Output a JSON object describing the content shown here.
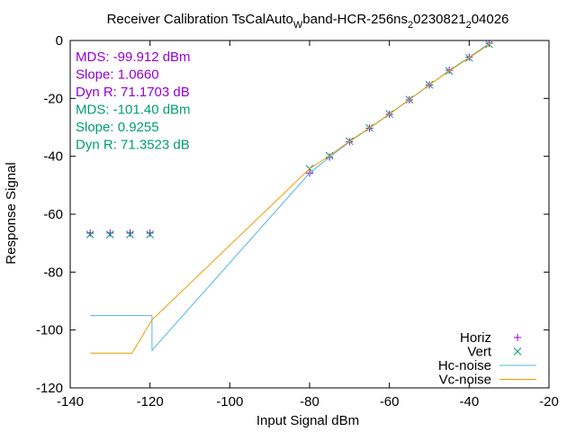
{
  "chart_data": {
    "type": "scatter",
    "title": {
      "parts": [
        {
          "text": "Receiver Calibration TsCalAuto",
          "sub": false
        },
        {
          "text": "W",
          "sub": true
        },
        {
          "text": "band-HCR-256ns",
          "sub": false
        },
        {
          "text": "2",
          "sub": true
        },
        {
          "text": "0230821",
          "sub": false
        },
        {
          "text": "2",
          "sub": true
        },
        {
          "text": "04026",
          "sub": false
        }
      ]
    },
    "xlabel": "Input Signal dBm",
    "ylabel": "Response Signal",
    "xlim": [
      -140,
      -20
    ],
    "ylim": [
      -120,
      0
    ],
    "x_ticks": [
      -140,
      -120,
      -100,
      -80,
      -60,
      -40,
      -20
    ],
    "y_ticks": [
      -120,
      -100,
      -80,
      -60,
      -40,
      -20,
      0
    ],
    "grid": false,
    "legend_position": "bottom-right",
    "annotations": [
      {
        "text": "MDS: -99.912 dBm",
        "color": "#9400d3"
      },
      {
        "text": "Slope: 1.0660",
        "color": "#9400d3"
      },
      {
        "text": "Dyn R: 71.1703 dB",
        "color": "#9400d3"
      },
      {
        "text": "MDS: -101.40 dBm",
        "color": "#009e73"
      },
      {
        "text": "Slope: 0.9255",
        "color": "#009e73"
      },
      {
        "text": "Dyn R: 71.3523 dB",
        "color": "#009e73"
      }
    ],
    "series": [
      {
        "name": "Horiz",
        "kind": "points",
        "marker": "plus",
        "color": "#9400d3",
        "x": [
          -135,
          -130,
          -125,
          -120,
          -80,
          -75,
          -70,
          -65,
          -60,
          -55,
          -50,
          -45,
          -40,
          -35
        ],
        "y": [
          -66.5,
          -66.5,
          -66.5,
          -66.5,
          -45.8,
          -40.3,
          -35.0,
          -30.3,
          -25.5,
          -20.5,
          -15.4,
          -10.3,
          -5.8,
          -1.0
        ]
      },
      {
        "name": "Vert",
        "kind": "points",
        "marker": "cross",
        "color": "#009e73",
        "x": [
          -135,
          -130,
          -125,
          -120,
          -80,
          -75,
          -70,
          -65,
          -60,
          -55,
          -50,
          -45,
          -40,
          -35
        ],
        "y": [
          -67.0,
          -67.0,
          -67.0,
          -67.0,
          -44.3,
          -39.8,
          -34.8,
          -30.2,
          -25.4,
          -20.4,
          -15.3,
          -10.5,
          -6.0,
          -1.3
        ]
      },
      {
        "name": "Hc-noise",
        "kind": "line",
        "color": "#56b4e9",
        "x": [
          -135,
          -119.5,
          -119.5,
          -80,
          -75,
          -70,
          -65,
          -60,
          -55,
          -50,
          -45,
          -40,
          -35,
          -34
        ],
        "y": [
          -95.0,
          -95.0,
          -107.0,
          -45.8,
          -40.3,
          -35.0,
          -30.3,
          -25.5,
          -20.5,
          -15.4,
          -10.3,
          -5.8,
          -1.0,
          0
        ]
      },
      {
        "name": "Vc-noise",
        "kind": "line",
        "color": "#e69f00",
        "x": [
          -135,
          -124.5,
          -119.5,
          -80,
          -75,
          -70,
          -65,
          -60,
          -55,
          -50,
          -45,
          -40,
          -35,
          -34
        ],
        "y": [
          -108.0,
          -108.0,
          -96.5,
          -44.3,
          -39.8,
          -34.8,
          -30.2,
          -25.4,
          -20.4,
          -15.3,
          -10.5,
          -6.0,
          -1.3,
          -0.4
        ]
      }
    ]
  }
}
